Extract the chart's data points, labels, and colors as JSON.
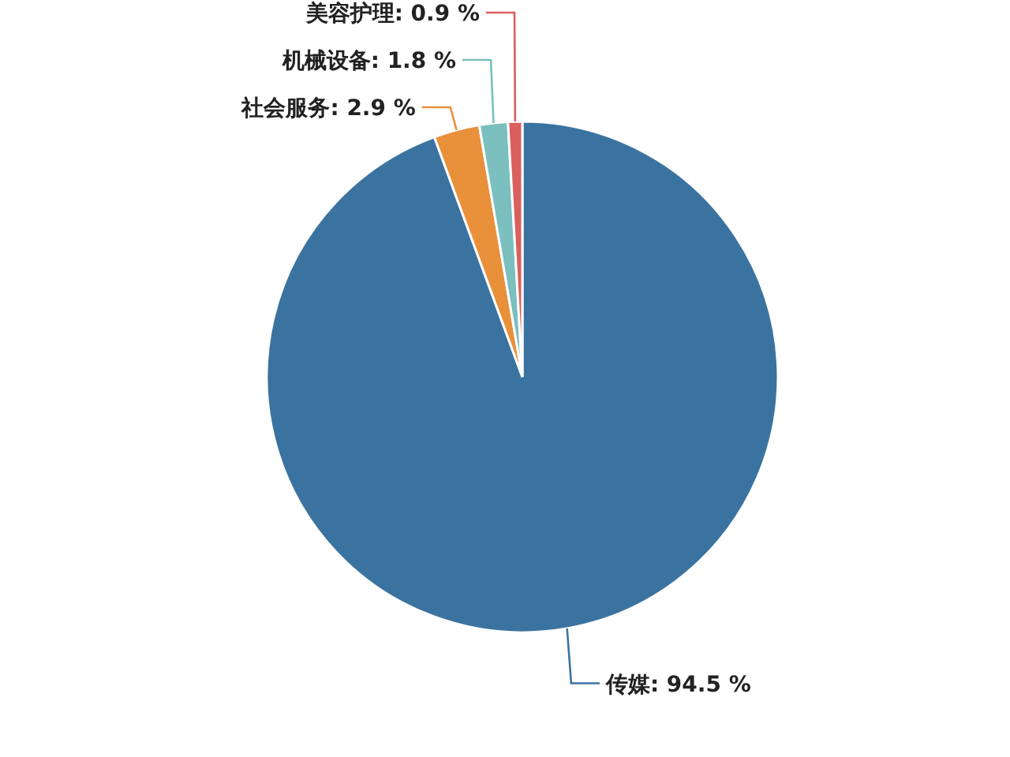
{
  "chart_data": {
    "type": "pie",
    "categories": [
      "传媒",
      "社会服务",
      "机械设备",
      "美容护理"
    ],
    "values": [
      94.5,
      2.9,
      1.8,
      0.9
    ],
    "value_labels": [
      "94.5 %",
      "2.9 %",
      "1.8 %",
      "0.9 %"
    ],
    "colors": [
      "#3b73a0",
      "#e8903a",
      "#7bbfbf",
      "#d9605e"
    ]
  }
}
